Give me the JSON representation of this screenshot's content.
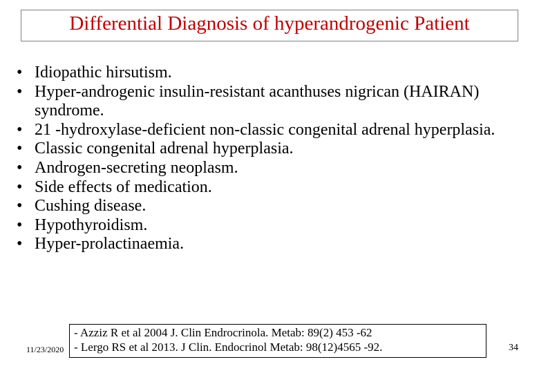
{
  "title": {
    "text": "Differential Diagnosis of hyperandrogenic Patient",
    "color": "#c00000",
    "fontsize": 29,
    "border_color": "#7f7f7f"
  },
  "bullets": {
    "marker": "•",
    "fontsize": 24,
    "color": "#000000",
    "items": [
      "Idiopathic hirsutism.",
      "Hyper-androgenic insulin-resistant acanthuses nigrican (HAIRAN) syndrome.",
      "21 -hydroxylase-deficient non-classic congenital adrenal hyperplasia.",
      "Classic congenital adrenal hyperplasia.",
      "Androgen-secreting neoplasm.",
      "Side effects of medication.",
      "Cushing disease.",
      "Hypothyroidism.",
      "Hyper-prolactinaemia."
    ]
  },
  "references": {
    "border_color": "#000000",
    "fontsize": 17,
    "lines": [
      "- Azziz R et al 2004 J. Clin Endrocrinola. Metab: 89(2) 453 -62",
      "- Lergo RS et al 2013. J Clin. Endocrinol Metab: 98(12)4565 -92."
    ]
  },
  "footer": {
    "date": "11/23/2020",
    "page": "34",
    "fontsize_date": 12,
    "fontsize_page": 14
  },
  "background_color": "#ffffff"
}
